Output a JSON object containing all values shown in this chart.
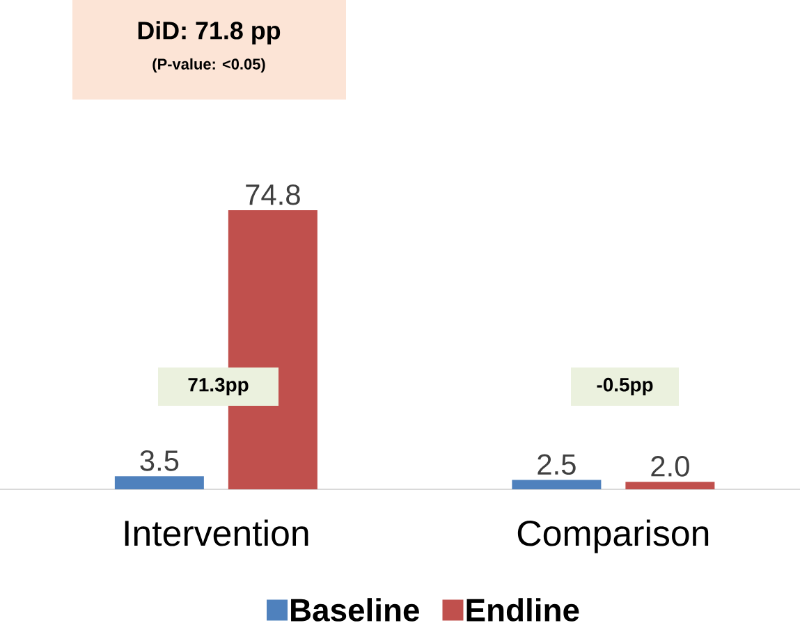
{
  "chart_data": {
    "type": "bar",
    "categories": [
      "Intervention",
      "Comparison"
    ],
    "series": [
      {
        "name": "Baseline",
        "color": "#4f81bd",
        "values": [
          3.5,
          2.5
        ],
        "value_labels": [
          "3.5",
          "2.5"
        ]
      },
      {
        "name": "Endline",
        "color": "#c0504d",
        "values": [
          74.8,
          2.0
        ],
        "value_labels": [
          "74.8",
          "2.0"
        ]
      }
    ],
    "legend": "bottom",
    "annotations": [
      "DiD: 71.8 pp",
      "(P-value: <0.05)",
      "71.3pp",
      "-0.5pp"
    ]
  }
}
